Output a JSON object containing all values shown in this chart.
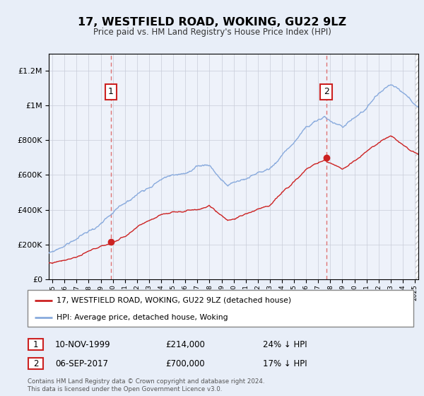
{
  "title": "17, WESTFIELD ROAD, WOKING, GU22 9LZ",
  "subtitle": "Price paid vs. HM Land Registry's House Price Index (HPI)",
  "legend_line1": "17, WESTFIELD ROAD, WOKING, GU22 9LZ (detached house)",
  "legend_line2": "HPI: Average price, detached house, Woking",
  "table_row1": [
    "1",
    "10-NOV-1999",
    "£214,000",
    "24% ↓ HPI"
  ],
  "table_row2": [
    "2",
    "06-SEP-2017",
    "£700,000",
    "17% ↓ HPI"
  ],
  "footnote": "Contains HM Land Registry data © Crown copyright and database right 2024.\nThis data is licensed under the Open Government Licence v3.0.",
  "sale1_year": 1999.85,
  "sale1_price": 214000,
  "sale2_year": 2017.67,
  "sale2_price": 700000,
  "red_color": "#cc2222",
  "blue_color": "#88aadd",
  "vline_color": "#dd6666",
  "bg_color": "#e8eef8",
  "plot_bg": "#eef2fa",
  "ylim": [
    0,
    1300000
  ],
  "xlim_start": 1994.7,
  "xlim_end": 2025.3,
  "yticks": [
    0,
    200000,
    400000,
    600000,
    800000,
    1000000,
    1200000
  ]
}
